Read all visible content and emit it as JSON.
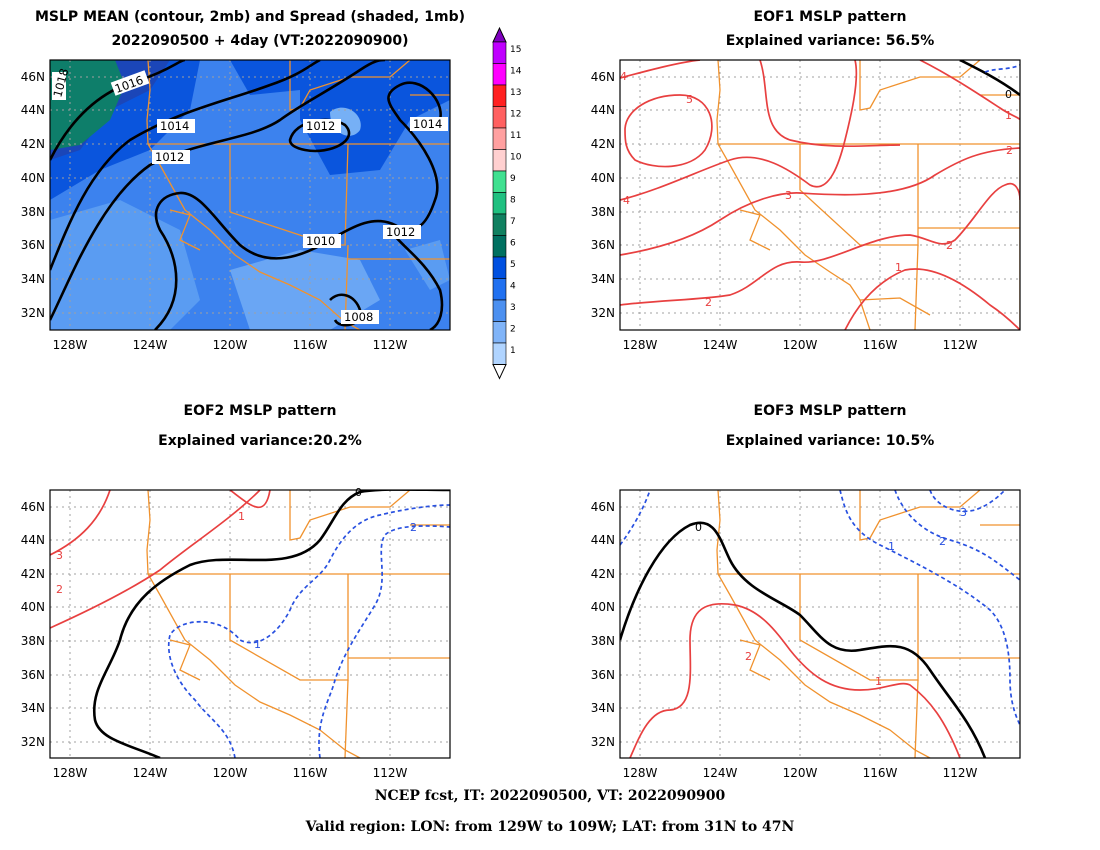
{
  "panels": {
    "mean": {
      "title1": "MSLP MEAN (contour, 2mb) and Spread (shaded, 1mb)",
      "title2": "2022090500 + 4day (VT:2022090900)",
      "contour_labels": [
        "1018",
        "1016",
        "1014",
        "1014",
        "1012",
        "1012",
        "1010",
        "1012",
        "1008"
      ]
    },
    "eof1": {
      "title1": "EOF1 MSLP pattern",
      "title2": "Explained variance: 56.5%",
      "contour_labels": [
        "5",
        "4",
        "3",
        "2",
        "1",
        "2",
        "0",
        "1",
        "2",
        "4"
      ]
    },
    "eof2": {
      "title1": "EOF2 MSLP pattern",
      "title2": "Explained variance:20.2%",
      "contour_labels": [
        "3",
        "2",
        "1",
        "0",
        "1",
        "2"
      ]
    },
    "eof3": {
      "title1": "EOF3 MSLP pattern",
      "title2": "Explained variance: 10.5%",
      "contour_labels": [
        "0",
        "1",
        "2",
        "3",
        "2",
        "1"
      ]
    }
  },
  "axes": {
    "lat_labels": [
      "46N",
      "44N",
      "42N",
      "40N",
      "38N",
      "36N",
      "34N",
      "32N"
    ],
    "lon_labels": [
      "128W",
      "124W",
      "120W",
      "116W",
      "112W"
    ]
  },
  "colorbar": {
    "labels": [
      "15",
      "14",
      "13",
      "12",
      "11",
      "10",
      "9",
      "8",
      "7",
      "6",
      "5",
      "4",
      "3",
      "2",
      "1"
    ],
    "colors": [
      "#c000ff",
      "#ff00ff",
      "#ff2020",
      "#ff6060",
      "#ffa0a0",
      "#ffd0d0",
      "#40e090",
      "#20c080",
      "#108060",
      "#007060",
      "#0050e0",
      "#2070f0",
      "#4c90f0",
      "#80b4f8",
      "#b0d4ff"
    ]
  },
  "colors": {
    "positive_contour": "#e84040",
    "negative_contour": "#2850e0",
    "zero_contour": "#000000",
    "state_borders": "#f0922e",
    "grid": "#999999"
  },
  "footer": {
    "line1": "NCEP fcst, IT: 2022090500, VT: 2022090900",
    "line2": "Valid region: LON: from 129W to 109W; LAT: from 31N to 47N"
  }
}
